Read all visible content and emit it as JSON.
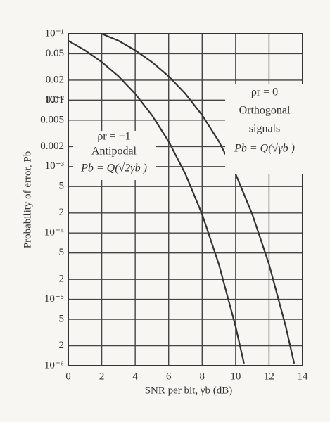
{
  "chart_data": {
    "type": "line",
    "log_y": true,
    "grid": true,
    "xlabel": "SNR per bit, γb (dB)",
    "ylabel": "Probability of error, Pb",
    "xlim": [
      0,
      14
    ],
    "xticks": [
      0,
      2,
      4,
      6,
      8,
      10,
      12,
      14
    ],
    "ylim": [
      1e-06,
      0.1
    ],
    "yticks": [
      {
        "value": 0.1,
        "label": "10⁻¹"
      },
      0.05,
      0.02,
      0.01,
      {
        "value": 0.01,
        "label": "10⁻²"
      },
      0.005,
      0.002,
      {
        "value": 0.001,
        "label": "10⁻³"
      },
      {
        "value": 0.0005,
        "label": "5"
      },
      {
        "value": 0.0002,
        "label": "2"
      },
      {
        "value": 0.0001,
        "label": "10⁻⁴"
      },
      {
        "value": 5e-05,
        "label": "5"
      },
      {
        "value": 2e-05,
        "label": "2"
      },
      {
        "value": 1e-05,
        "label": "10⁻⁵"
      },
      {
        "value": 5e-06,
        "label": "5"
      },
      {
        "value": 2e-06,
        "label": "2"
      },
      {
        "value": 1e-06,
        "label": "10⁻⁶"
      }
    ],
    "series": [
      {
        "name": "Antipodal",
        "color": "#333333",
        "x": [
          0,
          1,
          2,
          3,
          4,
          5,
          6,
          7,
          8,
          9,
          10,
          10.5
        ],
        "values": [
          0.0786,
          0.0563,
          0.0375,
          0.0229,
          0.0125,
          0.00595,
          0.00239,
          0.000773,
          0.000191,
          3.36e-05,
          3.87e-06,
          1.08e-06
        ]
      },
      {
        "name": "Orthogonal",
        "color": "#333333",
        "x": [
          2,
          3,
          4,
          5,
          6,
          7,
          8,
          9,
          10,
          11,
          12,
          13,
          13.5
        ],
        "values": [
          0.1,
          0.0786,
          0.0563,
          0.0375,
          0.0229,
          0.0125,
          0.00595,
          0.00239,
          0.000773,
          0.000191,
          3.36e-05,
          3.87e-06,
          1.08e-06
        ]
      }
    ],
    "annotations": [
      "ρr = −1",
      "Antipodal",
      "Pb = Q(√2γb )",
      "ρr = 0",
      "Orthogonal",
      "signals",
      "Pb = Q(√γb )"
    ]
  }
}
